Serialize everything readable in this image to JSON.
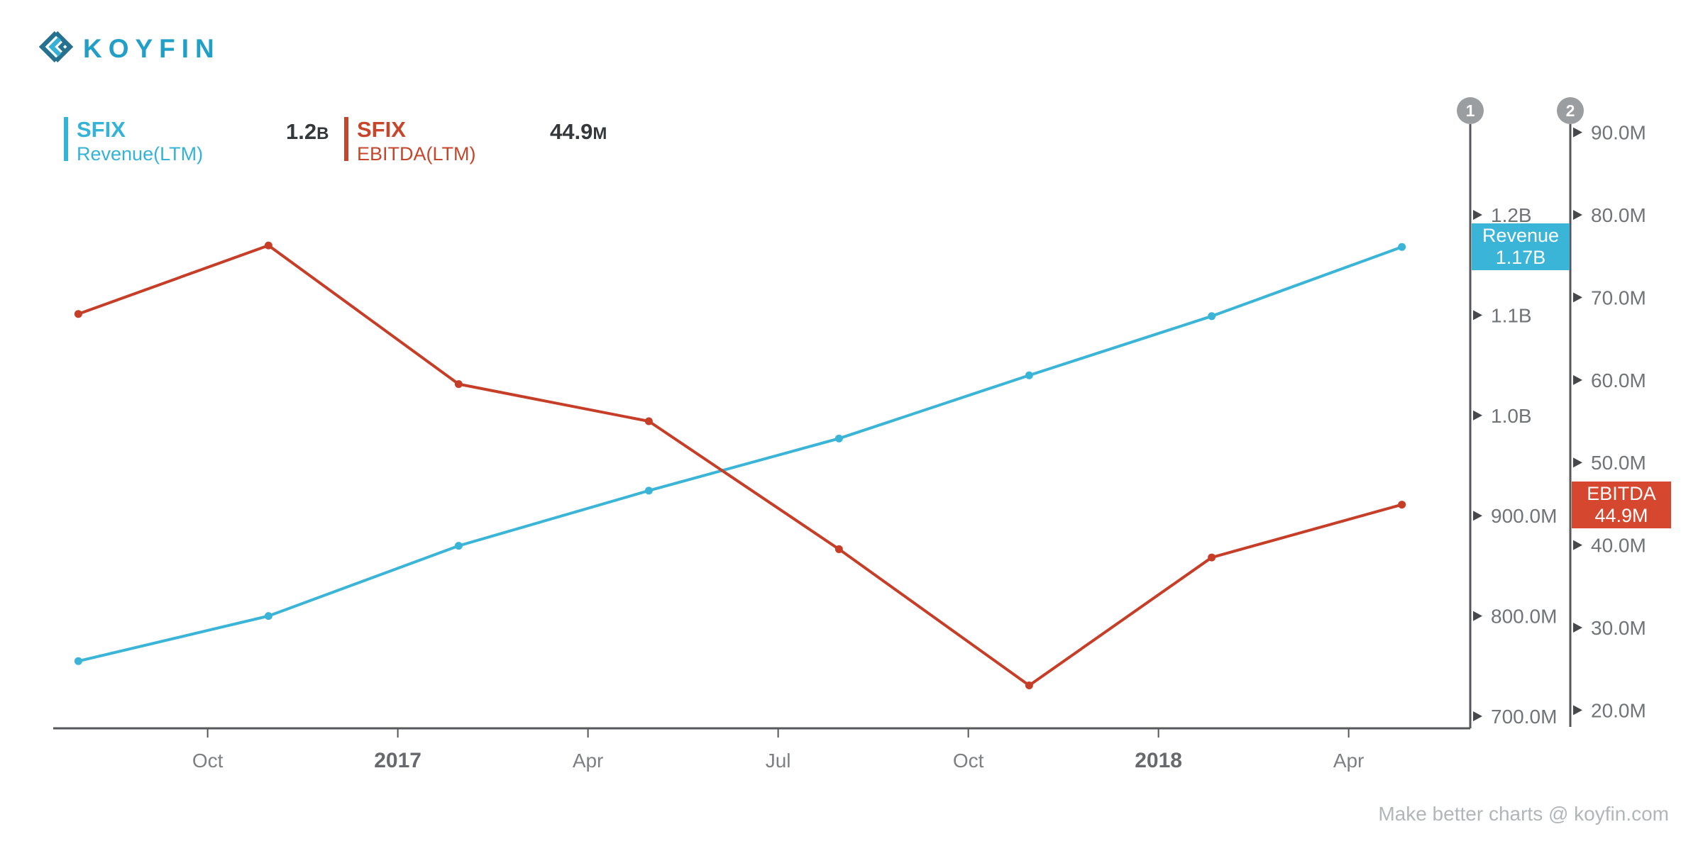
{
  "page": {
    "footer": "Make better charts @ koyfin.com"
  },
  "logo": {
    "text": "KOYFIN",
    "icon": "koyfin-diamond-chevrons-icon",
    "text_color": "#219fc7"
  },
  "legend": {
    "series": [
      {
        "ticker": "SFIX",
        "metric": "Revenue(LTM)",
        "value": "1.2",
        "value_suffix": "B",
        "color": "#35b3d7"
      },
      {
        "ticker": "SFIX",
        "metric": "EBITDA(LTM)",
        "value": "44.9",
        "value_suffix": "M",
        "color": "#c7452a"
      }
    ],
    "value_color": "#35383b"
  },
  "chart_data": {
    "type": "line",
    "title": "SFIX Revenue(LTM) vs EBITDA(LTM)",
    "background": "#ffffff",
    "grid": false,
    "x_dates": [
      "Jul 2016",
      "Oct 2016",
      "Jan 2017",
      "Apr 2017",
      "Jul 2017",
      "Oct 2017",
      "Jan 2018",
      "Apr 2018"
    ],
    "x_years": [
      2016.58,
      2016.83,
      2017.08,
      2017.33,
      2017.58,
      2017.83,
      2018.07,
      2018.32
    ],
    "series": [
      {
        "name": "SFIX Revenue(LTM)",
        "axis": 1,
        "color": "#3ab5d8",
        "units": "USD millions",
        "values_millions": [
          755,
          800,
          870,
          925,
          977,
          1040,
          1099,
          1168
        ]
      },
      {
        "name": "SFIX EBITDA(LTM)",
        "axis": 2,
        "color": "#c63e27",
        "units": "USD millions",
        "values_millions": [
          68,
          76.3,
          59.5,
          55,
          39.5,
          23,
          38.5,
          44.9
        ]
      }
    ],
    "x_ticks": [
      {
        "t": 2016.75,
        "label": "Oct",
        "bold": false
      },
      {
        "t": 2017.0,
        "label": "2017",
        "bold": true
      },
      {
        "t": 2017.25,
        "label": "Apr",
        "bold": false
      },
      {
        "t": 2017.5,
        "label": "Jul",
        "bold": false
      },
      {
        "t": 2017.75,
        "label": "Oct",
        "bold": false
      },
      {
        "t": 2018.0,
        "label": "2018",
        "bold": true
      },
      {
        "t": 2018.25,
        "label": "Apr",
        "bold": false
      }
    ],
    "axis1": {
      "label": "1",
      "ylim_millions": [
        688,
        1290.5
      ],
      "ticks": [
        {
          "v": 1200,
          "label": "1.2B"
        },
        {
          "v": 1100,
          "label": "1.1B"
        },
        {
          "v": 1000,
          "label": "1.0B"
        },
        {
          "v": 900,
          "label": "900.0M"
        },
        {
          "v": 800,
          "label": "800.0M"
        },
        {
          "v": 700,
          "label": "700.0M"
        }
      ],
      "marker": {
        "label": "Revenue",
        "value": "1.17B",
        "value_millions": 1168,
        "color": "#3ab5d8"
      }
    },
    "axis2": {
      "label": "2",
      "ylim_millions": [
        17.8,
        91.0
      ],
      "ticks": [
        {
          "v": 90,
          "label": "90.0M"
        },
        {
          "v": 80,
          "label": "80.0M"
        },
        {
          "v": 70,
          "label": "70.0M"
        },
        {
          "v": 60,
          "label": "60.0M"
        },
        {
          "v": 50,
          "label": "50.0M"
        },
        {
          "v": 40,
          "label": "40.0M"
        },
        {
          "v": 30,
          "label": "30.0M"
        },
        {
          "v": 20,
          "label": "20.0M"
        }
      ],
      "marker": {
        "label": "EBITDA",
        "value": "44.9M",
        "value_millions": 44.9,
        "color": "#d5472e"
      }
    }
  },
  "colors": {
    "axis_line": "#55575a",
    "tick_arrow": "#46484b",
    "tick_text": "#717477",
    "x_month_text": "#7d7f82",
    "x_year_text": "#67696c",
    "axis_circle": "#9b9ea1",
    "footer_text": "#b3b6b8"
  }
}
